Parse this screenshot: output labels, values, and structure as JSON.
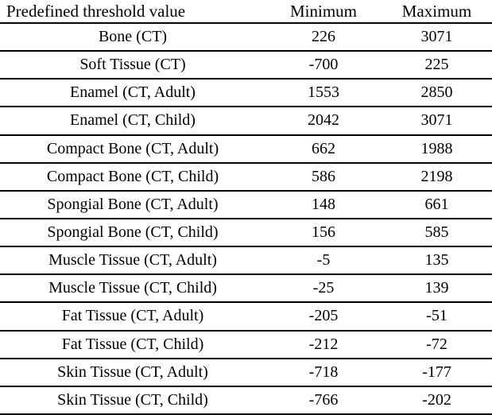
{
  "table": {
    "headers": {
      "label": "Predefined threshold value",
      "min": "Minimum",
      "max": "Maximum"
    },
    "rows": [
      {
        "name": "Bone (CT)",
        "min": "226",
        "max": "3071"
      },
      {
        "name": "Soft Tissue (CT)",
        "min": "-700",
        "max": "225"
      },
      {
        "name": "Enamel (CT, Adult)",
        "min": "1553",
        "max": "2850"
      },
      {
        "name": "Enamel (CT, Child)",
        "min": "2042",
        "max": "3071"
      },
      {
        "name": "Compact Bone (CT, Adult)",
        "min": "662",
        "max": "1988"
      },
      {
        "name": "Compact Bone (CT, Child)",
        "min": "586",
        "max": "2198"
      },
      {
        "name": "Spongial Bone (CT, Adult)",
        "min": "148",
        "max": "661"
      },
      {
        "name": "Spongial Bone (CT, Child)",
        "min": "156",
        "max": "585"
      },
      {
        "name": "Muscle Tissue (CT, Adult)",
        "min": "-5",
        "max": "135"
      },
      {
        "name": "Muscle Tissue (CT, Child)",
        "min": "-25",
        "max": "139"
      },
      {
        "name": "Fat Tissue (CT, Adult)",
        "min": "-205",
        "max": "-51"
      },
      {
        "name": "Fat Tissue (CT, Child)",
        "min": "-212",
        "max": "-72"
      },
      {
        "name": "Skin Tissue (CT, Adult)",
        "min": "-718",
        "max": "-177"
      },
      {
        "name": "Skin Tissue (CT, Child)",
        "min": "-766",
        "max": "-202"
      }
    ]
  }
}
